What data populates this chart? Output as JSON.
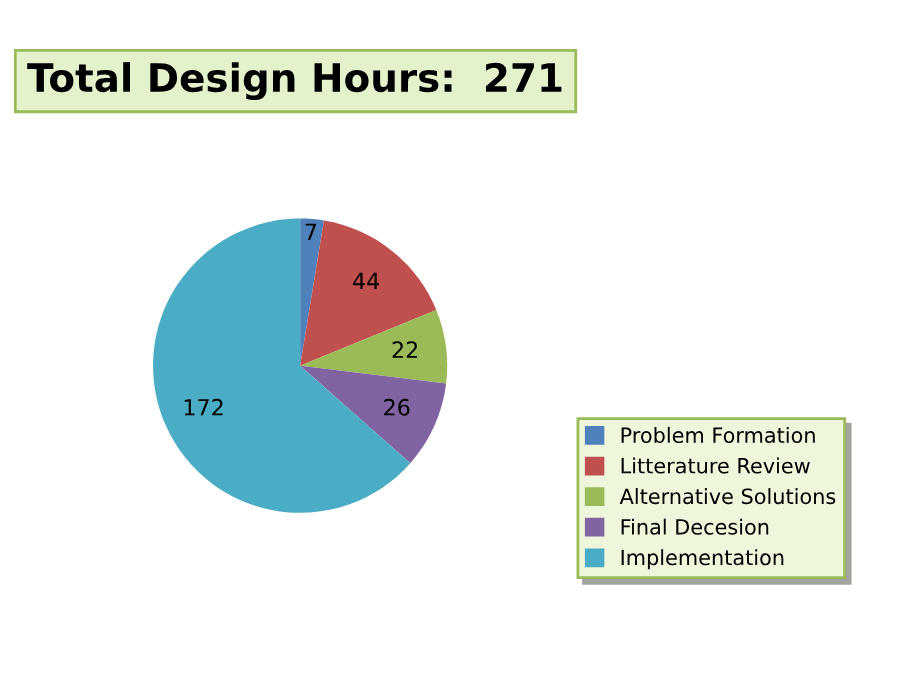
{
  "chart_data": {
    "type": "pie",
    "title": "Total Design Hours:  271",
    "categories": [
      "Problem Formation",
      "Litterature Review",
      "Alternative Solutions",
      "Final Decesion",
      "Implementation"
    ],
    "values": [
      7,
      44,
      22,
      26,
      172
    ],
    "colors": [
      "#4f81bd",
      "#c0504d",
      "#9bbb59",
      "#8064a2",
      "#4bacc6"
    ],
    "data_labels": true,
    "legend": "right"
  }
}
